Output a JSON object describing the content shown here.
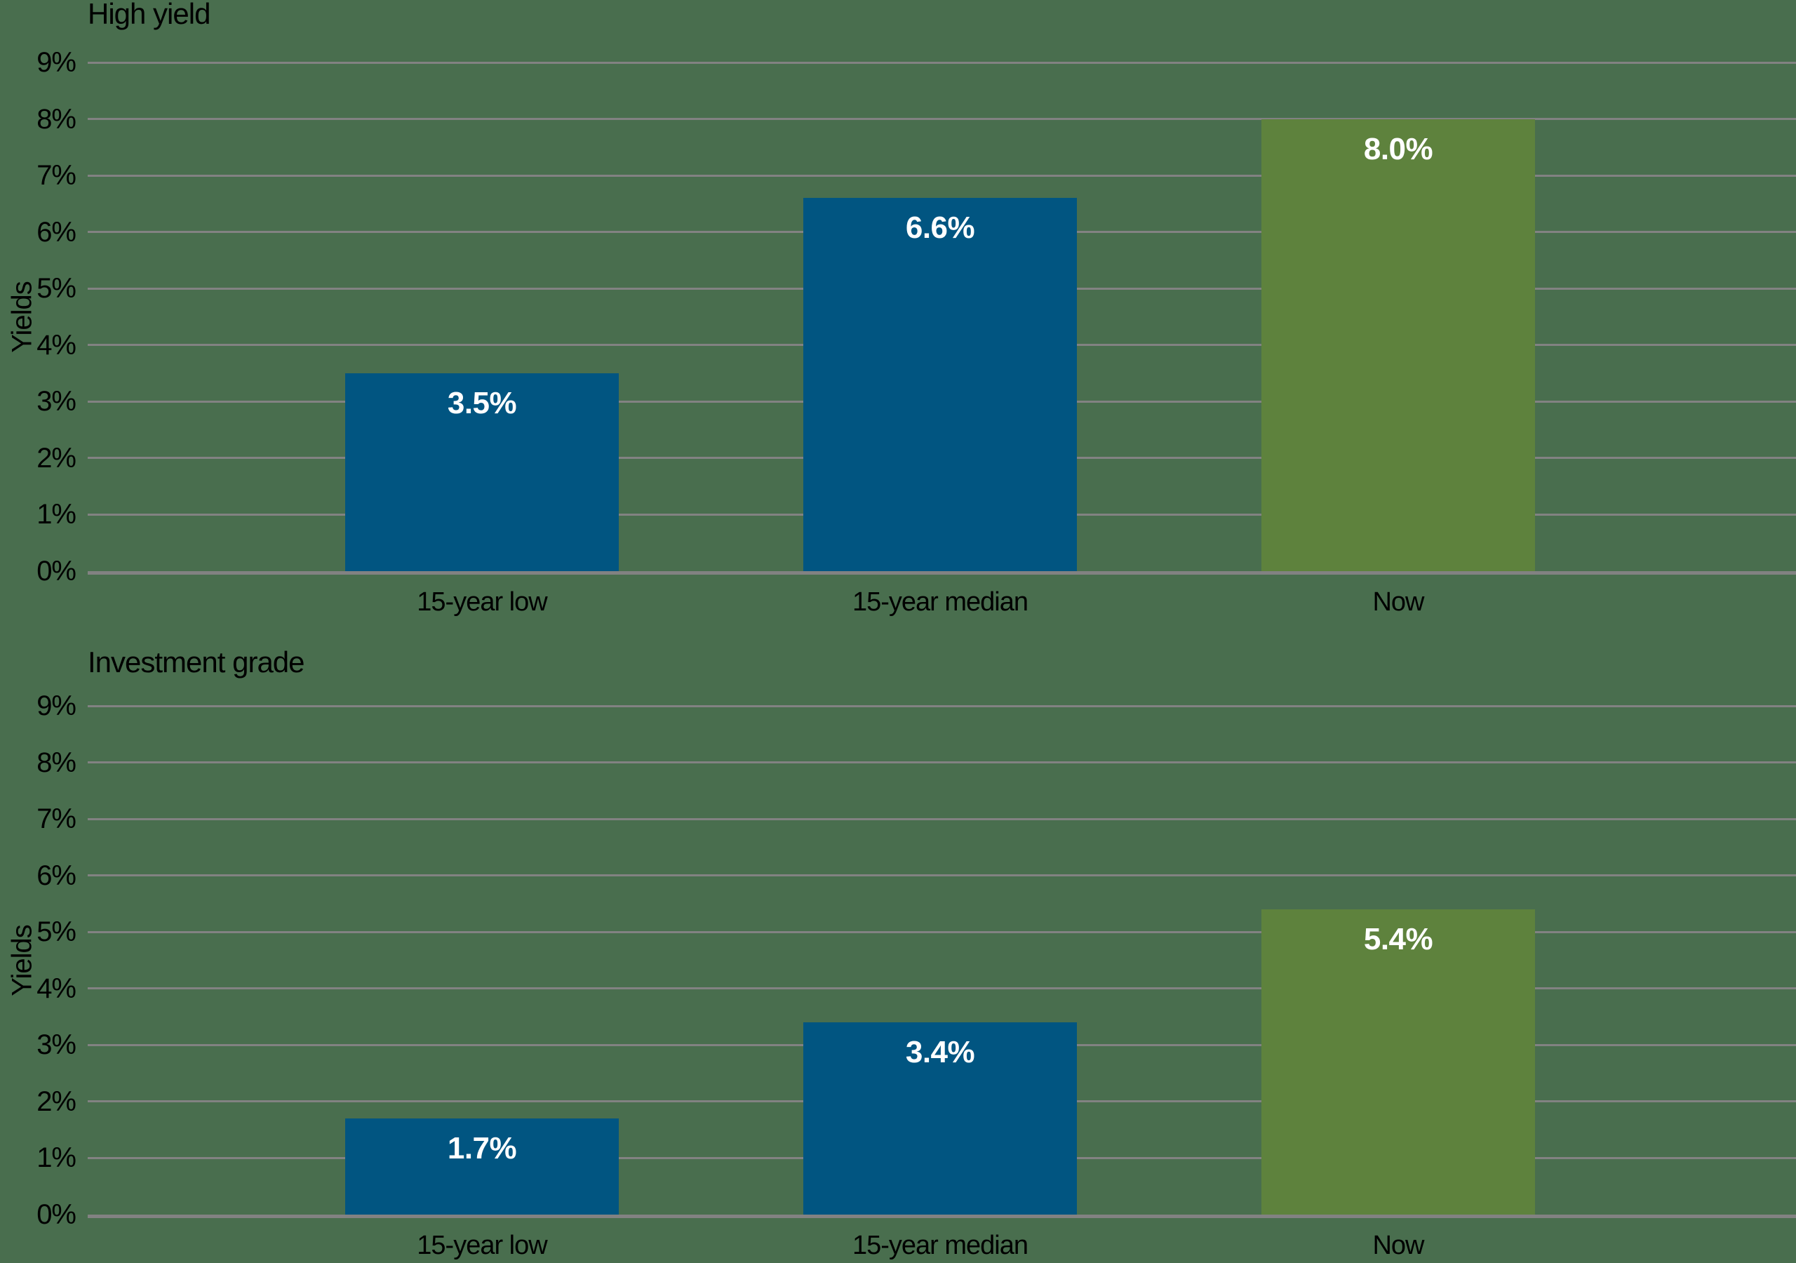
{
  "figure": {
    "background_color": "#496e4e",
    "grid_color": "#828282",
    "axis_line_color": "#828282",
    "title_color": "#000000",
    "tick_label_color": "#000000",
    "value_label_color": "#ffffff",
    "bar_blue": "#015581",
    "bar_green": "#5e823d"
  },
  "y_axis": {
    "label": "Yields",
    "min": 0,
    "max": 9,
    "tick_step": 1,
    "tick_labels": [
      "0%",
      "1%",
      "2%",
      "3%",
      "4%",
      "5%",
      "6%",
      "7%",
      "8%",
      "9%"
    ]
  },
  "chart_data": [
    {
      "type": "bar",
      "title": "High yield",
      "ylabel": "Yields",
      "xlabel": "",
      "categories": [
        "15-year low",
        "15-year median",
        "Now"
      ],
      "values": [
        3.5,
        6.6,
        8.0
      ],
      "value_labels": [
        "3.5%",
        "6.6%",
        "8.0%"
      ],
      "bar_colors": [
        "#015581",
        "#015581",
        "#5e823d"
      ],
      "ylim": [
        0,
        9
      ],
      "grid": true,
      "legend": "none"
    },
    {
      "type": "bar",
      "title": "Investment grade",
      "ylabel": "Yields",
      "xlabel": "",
      "categories": [
        "15-year low",
        "15-year median",
        "Now"
      ],
      "values": [
        1.7,
        3.4,
        5.4
      ],
      "value_labels": [
        "1.7%",
        "3.4%",
        "5.4%"
      ],
      "bar_colors": [
        "#015581",
        "#015581",
        "#5e823d"
      ],
      "ylim": [
        0,
        9
      ],
      "grid": true,
      "legend": "none"
    }
  ]
}
